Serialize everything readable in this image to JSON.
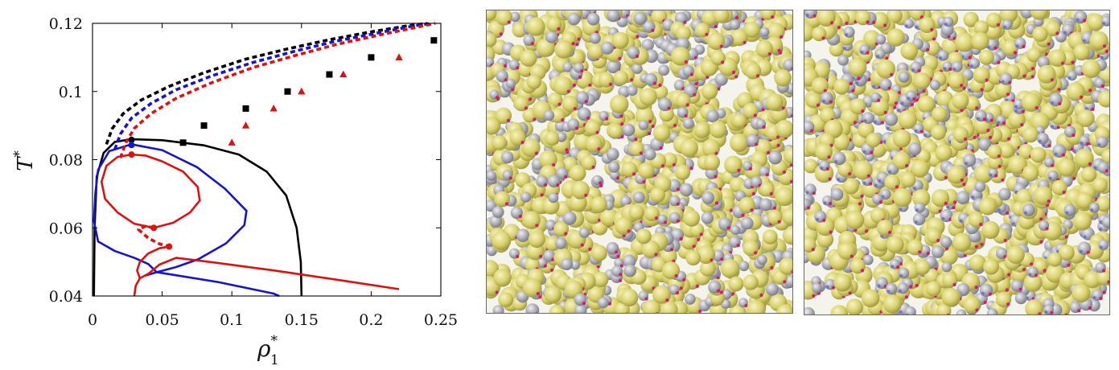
{
  "chart_data": {
    "type": "line",
    "xlabel": "ρ",
    "xlabel_sub": "1",
    "xlabel_sup": "*",
    "ylabel": "T",
    "ylabel_sup": "*",
    "xlim": [
      0,
      0.25
    ],
    "ylim": [
      0.04,
      0.12
    ],
    "x_ticks": [
      0,
      0.05,
      0.1,
      0.15,
      0.2,
      0.25
    ],
    "x_tick_labels": [
      "0",
      "0.05",
      "0.1",
      "0.15",
      "0.2",
      "0.25"
    ],
    "y_ticks": [
      0.04,
      0.06,
      0.08,
      0.1,
      0.12
    ],
    "y_tick_labels": [
      "0.04",
      "0.06",
      "0.08",
      "0.1",
      "0.12"
    ],
    "colors": {
      "black": "#000000",
      "blue": "#1414d2",
      "red": "#e01010"
    },
    "curves": [
      {
        "color": "black",
        "style": "solid",
        "points": [
          [
            0.001,
            0.04
          ],
          [
            0.0015,
            0.06
          ],
          [
            0.003,
            0.075
          ],
          [
            0.008,
            0.082
          ],
          [
            0.016,
            0.0852
          ],
          [
            0.028,
            0.086
          ],
          [
            0.05,
            0.0857
          ],
          [
            0.08,
            0.0842
          ],
          [
            0.105,
            0.0815
          ],
          [
            0.125,
            0.0765
          ],
          [
            0.139,
            0.0695
          ],
          [
            0.1465,
            0.06
          ],
          [
            0.1495,
            0.05
          ],
          [
            0.15,
            0.04
          ]
        ]
      },
      {
        "color": "blue",
        "style": "solid",
        "points": [
          [
            0.002,
            0.07
          ],
          [
            0.004,
            0.077
          ],
          [
            0.012,
            0.0825
          ],
          [
            0.028,
            0.0845
          ],
          [
            0.05,
            0.0828
          ],
          [
            0.075,
            0.0778
          ],
          [
            0.095,
            0.0715
          ],
          [
            0.1105,
            0.065
          ],
          [
            0.109,
            0.0608
          ],
          [
            0.096,
            0.0555
          ],
          [
            0.076,
            0.0508
          ],
          [
            0.06,
            0.0485
          ],
          [
            0.05,
            0.0474
          ],
          [
            0.046,
            0.047
          ],
          [
            0.09,
            0.0441
          ],
          [
            0.13,
            0.0407
          ],
          [
            0.134,
            0.04
          ]
        ]
      },
      {
        "color": "blue",
        "style": "solid",
        "points": [
          [
            0.002,
            0.07
          ],
          [
            0.001,
            0.062
          ],
          [
            0.004,
            0.056
          ],
          [
            0.016,
            0.0532
          ],
          [
            0.03,
            0.0512
          ],
          [
            0.04,
            0.0494
          ],
          [
            0.046,
            0.047
          ],
          [
            0.042,
            0.0465
          ],
          [
            0.038,
            0.046
          ]
        ]
      },
      {
        "color": "red",
        "style": "solid",
        "points": [
          [
            0.028,
            0.0815
          ],
          [
            0.038,
            0.0812
          ],
          [
            0.05,
            0.0795
          ],
          [
            0.065,
            0.0765
          ],
          [
            0.0755,
            0.072
          ],
          [
            0.077,
            0.068
          ],
          [
            0.07,
            0.0645
          ],
          [
            0.058,
            0.0615
          ],
          [
            0.044,
            0.06
          ]
        ]
      },
      {
        "color": "red",
        "style": "solid",
        "points": [
          [
            0.028,
            0.0815
          ],
          [
            0.018,
            0.0808
          ],
          [
            0.01,
            0.0782
          ],
          [
            0.0065,
            0.0735
          ],
          [
            0.009,
            0.0685
          ],
          [
            0.018,
            0.0645
          ],
          [
            0.03,
            0.0612
          ],
          [
            0.044,
            0.06
          ]
        ]
      },
      {
        "color": "red",
        "style": "solid",
        "points": [
          [
            0.055,
            0.0545
          ],
          [
            0.048,
            0.054
          ],
          [
            0.04,
            0.0525
          ],
          [
            0.034,
            0.05
          ],
          [
            0.032,
            0.0475
          ],
          [
            0.034,
            0.0452
          ],
          [
            0.04,
            0.0465
          ],
          [
            0.048,
            0.0492
          ],
          [
            0.06,
            0.0512
          ],
          [
            0.09,
            0.0497
          ],
          [
            0.13,
            0.0475
          ],
          [
            0.18,
            0.0445
          ],
          [
            0.22,
            0.042
          ]
        ]
      },
      {
        "color": "red",
        "style": "solid",
        "points": [
          [
            0.034,
            0.0452
          ],
          [
            0.031,
            0.043
          ],
          [
            0.03,
            0.04
          ]
        ]
      },
      {
        "color": "red",
        "style": "dashed",
        "points": [
          [
            0.044,
            0.06
          ],
          [
            0.038,
            0.0605
          ],
          [
            0.033,
            0.0595
          ],
          [
            0.04,
            0.057
          ],
          [
            0.048,
            0.0553
          ],
          [
            0.055,
            0.0545
          ]
        ]
      },
      {
        "color": "black",
        "style": "dashed",
        "points": [
          [
            0.01,
            0.0845
          ],
          [
            0.014,
            0.089
          ],
          [
            0.022,
            0.0935
          ],
          [
            0.035,
            0.0975
          ],
          [
            0.055,
            0.1015
          ],
          [
            0.08,
            0.1055
          ],
          [
            0.11,
            0.1095
          ],
          [
            0.14,
            0.1125
          ],
          [
            0.17,
            0.1152
          ],
          [
            0.2,
            0.1175
          ],
          [
            0.225,
            0.1192
          ],
          [
            0.24,
            0.12
          ]
        ]
      },
      {
        "color": "blue",
        "style": "dashed",
        "points": [
          [
            0.016,
            0.083
          ],
          [
            0.02,
            0.0875
          ],
          [
            0.028,
            0.0922
          ],
          [
            0.042,
            0.0965
          ],
          [
            0.06,
            0.1005
          ],
          [
            0.085,
            0.1045
          ],
          [
            0.115,
            0.1085
          ],
          [
            0.145,
            0.1118
          ],
          [
            0.175,
            0.1148
          ],
          [
            0.205,
            0.1172
          ],
          [
            0.23,
            0.1192
          ],
          [
            0.243,
            0.12
          ]
        ]
      },
      {
        "color": "red",
        "style": "dashed",
        "points": [
          [
            0.02,
            0.0805
          ],
          [
            0.024,
            0.085
          ],
          [
            0.03,
            0.0892
          ],
          [
            0.042,
            0.0935
          ],
          [
            0.06,
            0.098
          ],
          [
            0.085,
            0.1025
          ],
          [
            0.115,
            0.107
          ],
          [
            0.145,
            0.1105
          ],
          [
            0.175,
            0.1138
          ],
          [
            0.205,
            0.1165
          ],
          [
            0.232,
            0.1188
          ],
          [
            0.246,
            0.12
          ]
        ]
      }
    ],
    "markers": [
      {
        "color": "black",
        "shape": "circle",
        "x": 0.028,
        "y": 0.0858
      },
      {
        "color": "blue",
        "shape": "circle",
        "x": 0.028,
        "y": 0.0843
      },
      {
        "color": "red",
        "shape": "circle",
        "x": 0.028,
        "y": 0.0815
      },
      {
        "color": "red",
        "shape": "circle",
        "x": 0.044,
        "y": 0.06
      },
      {
        "color": "red",
        "shape": "circle",
        "x": 0.055,
        "y": 0.0545
      },
      {
        "color": "black",
        "shape": "square",
        "x": 0.065,
        "y": 0.085
      },
      {
        "color": "black",
        "shape": "square",
        "x": 0.08,
        "y": 0.09
      },
      {
        "color": "black",
        "shape": "square",
        "x": 0.11,
        "y": 0.095
      },
      {
        "color": "black",
        "shape": "square",
        "x": 0.14,
        "y": 0.1
      },
      {
        "color": "black",
        "shape": "square",
        "x": 0.17,
        "y": 0.105
      },
      {
        "color": "black",
        "shape": "square",
        "x": 0.2,
        "y": 0.11
      },
      {
        "color": "black",
        "shape": "square",
        "x": 0.245,
        "y": 0.115
      },
      {
        "color": "red",
        "shape": "triangle",
        "x": 0.1,
        "y": 0.085
      },
      {
        "color": "red",
        "shape": "triangle",
        "x": 0.11,
        "y": 0.09
      },
      {
        "color": "red",
        "shape": "triangle",
        "x": 0.13,
        "y": 0.095
      },
      {
        "color": "red",
        "shape": "triangle",
        "x": 0.15,
        "y": 0.1
      },
      {
        "color": "red",
        "shape": "triangle",
        "x": 0.18,
        "y": 0.105
      },
      {
        "color": "red",
        "shape": "triangle",
        "x": 0.22,
        "y": 0.11
      }
    ]
  },
  "snapshots": [
    {
      "name": "snapshot-left",
      "sphere_colors": [
        "#d8d06a",
        "#a9a9b2"
      ],
      "patch_color": "#d61a6c"
    },
    {
      "name": "snapshot-right",
      "sphere_colors": [
        "#d8d06a",
        "#a9a9b2"
      ],
      "patch_color": "#d61a6c",
      "accent_color": "#6f76c8"
    }
  ]
}
